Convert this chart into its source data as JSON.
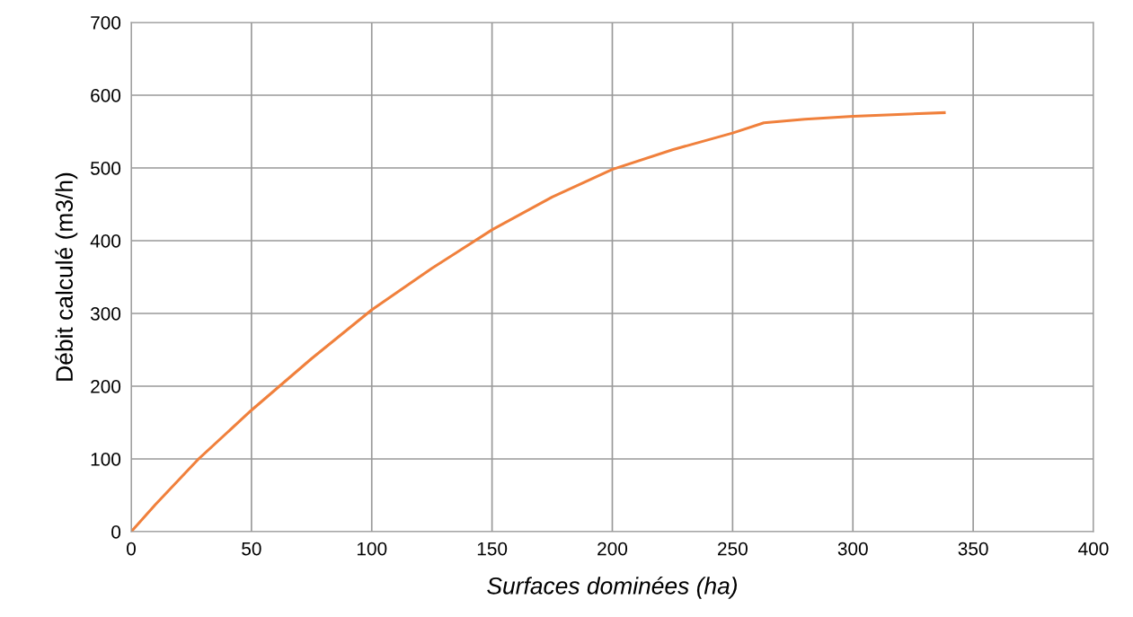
{
  "chart_data": {
    "type": "line",
    "xlabel": "Surfaces dominées (ha)",
    "ylabel": "Débit calculé (m3/h)",
    "series": [
      {
        "color": "#f0803c",
        "x": [
          0,
          10,
          28,
          50,
          75,
          100,
          125,
          150,
          175,
          200,
          225,
          250,
          263,
          280,
          300,
          338
        ],
        "values": [
          0,
          37,
          100,
          167,
          238,
          305,
          362,
          415,
          460,
          498,
          525,
          548,
          562,
          567,
          571,
          576
        ]
      }
    ],
    "xlim": [
      0,
      400
    ],
    "xticks": [
      0,
      50,
      100,
      150,
      200,
      250,
      300,
      350,
      400
    ],
    "ylim": [
      0,
      700
    ],
    "yticks": [
      0,
      100,
      200,
      300,
      400,
      500,
      600,
      700
    ],
    "grid": true,
    "marker": "none",
    "line_style": "solid"
  }
}
